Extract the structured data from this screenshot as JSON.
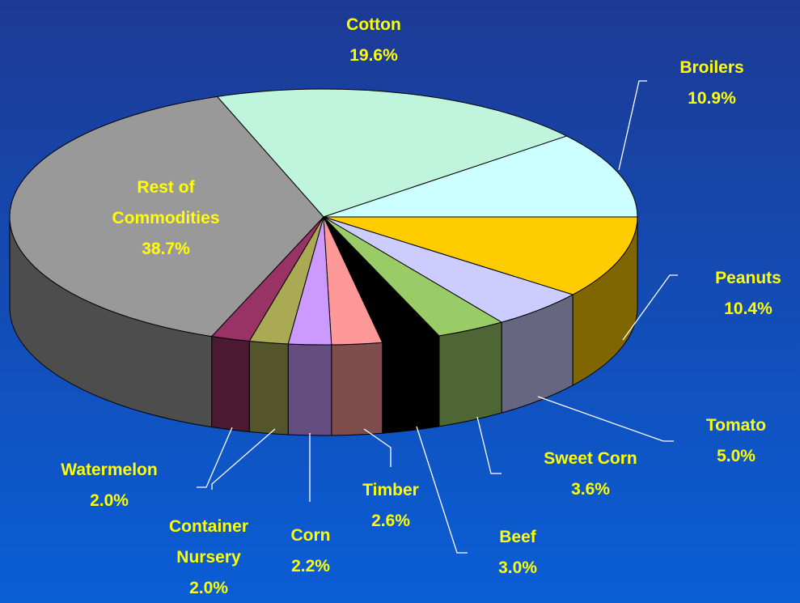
{
  "chart_data": {
    "type": "pie3d",
    "categories": [
      "Peanuts",
      "Tomato",
      "Sweet Corn",
      "Beef",
      "Timber",
      "Corn",
      "Container Nursery",
      "Watermelon",
      "Rest of Commodities",
      "Cotton",
      "Broilers"
    ],
    "values": [
      10.4,
      5.0,
      3.6,
      3.0,
      2.6,
      2.2,
      2.0,
      2.0,
      38.7,
      19.6,
      10.9
    ],
    "value_labels": [
      "10.4%",
      "5.0%",
      "3.6%",
      "3.0%",
      "2.6%",
      "2.2%",
      "2.0%",
      "2.0%",
      "38.7%",
      "19.6%",
      "10.9%"
    ],
    "colors": [
      "#ffcc00",
      "#ccccff",
      "#99cc66",
      "#000000",
      "#ff9999",
      "#cc99ff",
      "#aaaa55",
      "#993366",
      "#999999",
      "#bff5dd",
      "#ccffff"
    ]
  }
}
